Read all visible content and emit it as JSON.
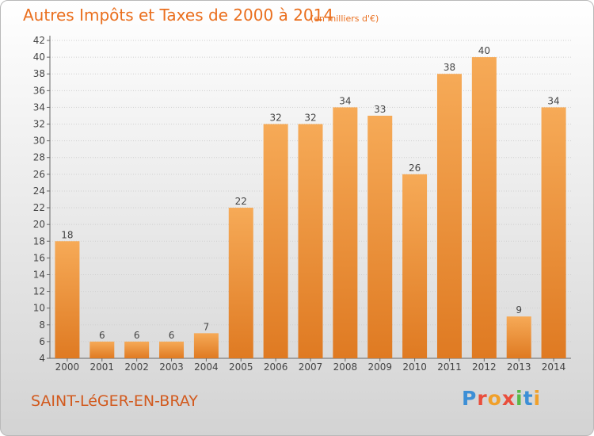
{
  "title": "Autres Impôts et Taxes de 2000 à 2014",
  "subtitle": "(en milliers d'€)",
  "place": "SAINT-LéGER-EN-BRAY",
  "logo": {
    "text": "Proxiti",
    "letters": [
      {
        "ch": "P",
        "color": "#3d8fd6"
      },
      {
        "ch": "r",
        "color": "#e94e3c"
      },
      {
        "ch": "o",
        "color": "#f0a02a"
      },
      {
        "ch": "x",
        "color": "#e94e3c"
      },
      {
        "ch": "i",
        "color": "#58b947"
      },
      {
        "ch": "t",
        "color": "#3d8fd6"
      },
      {
        "ch": "i",
        "color": "#f0a02a"
      }
    ]
  },
  "colors": {
    "bar_light": "#f6aa57",
    "bar_dark": "#df7a22",
    "title": "#ea6f1e",
    "grid": "#cfcfcf"
  },
  "chart_data": {
    "type": "bar",
    "title": "Autres Impôts et Taxes de 2000 à 2014",
    "subtitle": "(en milliers d'€)",
    "xlabel": "",
    "ylabel": "",
    "categories": [
      "2000",
      "2001",
      "2002",
      "2003",
      "2004",
      "2005",
      "2006",
      "2007",
      "2008",
      "2009",
      "2010",
      "2011",
      "2012",
      "2013",
      "2014"
    ],
    "values": [
      18,
      6,
      6,
      6,
      7,
      22,
      32,
      32,
      34,
      33,
      26,
      38,
      40,
      9,
      34
    ],
    "ylim": [
      4,
      42
    ],
    "yticks": [
      4,
      6,
      8,
      10,
      12,
      14,
      16,
      18,
      20,
      22,
      24,
      26,
      28,
      30,
      32,
      34,
      36,
      38,
      40,
      42
    ],
    "grid": true,
    "data_labels": true
  }
}
